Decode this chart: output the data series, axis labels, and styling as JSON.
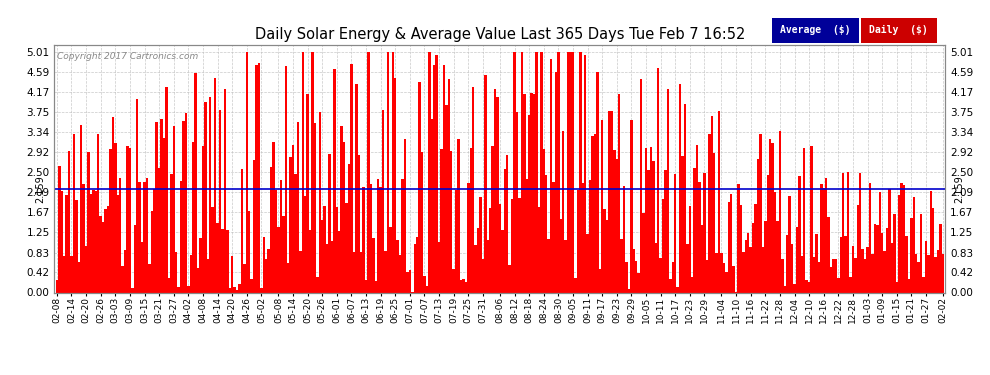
{
  "title": "Daily Solar Energy & Average Value Last 365 Days Tue Feb 7 16:52",
  "copyright": "Copyright 2017 Cartronics.com",
  "average_value": 2.159,
  "average_label": "2.159",
  "yticks": [
    0.0,
    0.42,
    0.83,
    1.25,
    1.67,
    2.09,
    2.5,
    2.92,
    3.34,
    3.75,
    4.17,
    4.59,
    5.01
  ],
  "bar_color": "#ff0000",
  "avg_line_color": "#0000cc",
  "background_color": "#ffffff",
  "grid_color": "#bbbbbb",
  "legend_avg_bg": "#000099",
  "legend_daily_bg": "#cc0000",
  "legend_avg_text": "Average  ($)",
  "legend_daily_text": "Daily  ($)",
  "x_dates": [
    "02-08",
    "02-14",
    "02-20",
    "02-26",
    "03-03",
    "03-09",
    "03-15",
    "03-21",
    "03-27",
    "04-02",
    "04-08",
    "04-14",
    "04-20",
    "04-26",
    "05-02",
    "05-08",
    "05-14",
    "05-20",
    "05-26",
    "06-01",
    "06-07",
    "06-13",
    "06-19",
    "06-25",
    "07-01",
    "07-07",
    "07-13",
    "07-19",
    "07-25",
    "07-31",
    "08-06",
    "08-12",
    "08-18",
    "08-24",
    "08-30",
    "09-05",
    "09-11",
    "09-17",
    "09-23",
    "09-29",
    "10-05",
    "10-11",
    "10-17",
    "10-23",
    "10-29",
    "11-04",
    "11-10",
    "11-16",
    "11-22",
    "11-28",
    "12-04",
    "12-10",
    "12-16",
    "12-22",
    "12-28",
    "01-03",
    "01-09",
    "01-15",
    "01-21",
    "01-27",
    "02-02"
  ]
}
